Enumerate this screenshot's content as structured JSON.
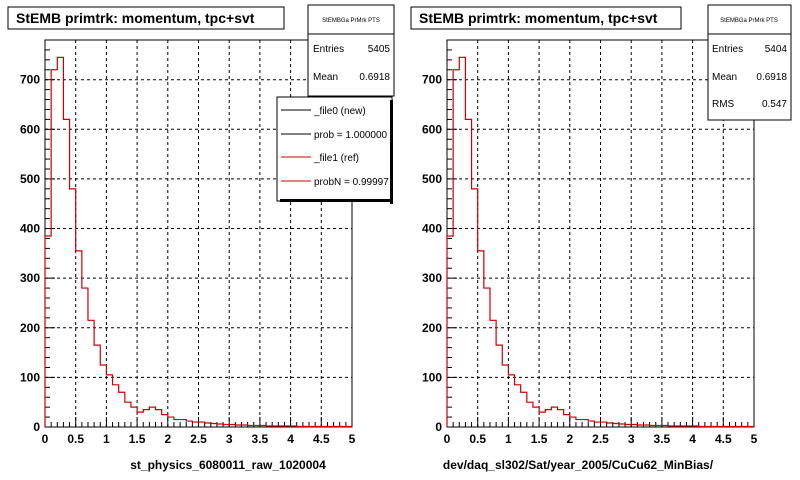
{
  "colors": {
    "file0": "#000000",
    "file1": "#cc0000",
    "grid": "#000000"
  },
  "panels": [
    {
      "title": "StEMB primtrk: momentum, tpc+svt",
      "xlabel": "st_physics_6080011_raw_1020004",
      "stats": {
        "name": "StEMBGa PrMrk PTS",
        "rows": [
          {
            "label": "Entries",
            "value": "5405"
          },
          {
            "label": "Mean",
            "value": "0.6918"
          }
        ]
      },
      "legend": [
        {
          "label": "_file0 (new)",
          "color": "file0"
        },
        {
          "label": "prob = 1.000000",
          "color": "file0"
        },
        {
          "label": "_file1 (ref)",
          "color": "file1"
        },
        {
          "label": "probN = 0.99997",
          "color": "file1"
        }
      ]
    },
    {
      "title": "StEMB primtrk: momentum, tpc+svt",
      "xlabel": "dev/daq_sl302/Sat/year_2005/CuCu62_MinBias/",
      "stats": {
        "name": "StEMBGa PrMrk PTS",
        "rows": [
          {
            "label": "Entries",
            "value": "5404"
          },
          {
            "label": "Mean",
            "value": "0.6918"
          },
          {
            "label": "RMS",
            "value": "0.547"
          }
        ]
      },
      "legend": []
    }
  ],
  "chart_data": [
    {
      "type": "bar",
      "title": "StEMB primtrk: momentum, tpc+svt",
      "xlabel": "st_physics_6080011_raw_1020004",
      "xlim": [
        0,
        5
      ],
      "ylim": [
        0,
        780
      ],
      "grid": true,
      "legend_position": "top-right",
      "x_ticks": [
        "0",
        "0.5",
        "1",
        "1.5",
        "2",
        "2.5",
        "3",
        "3.5",
        "4",
        "4.5",
        "5"
      ],
      "y_ticks": [
        "0",
        "100",
        "200",
        "300",
        "400",
        "500",
        "600",
        "700"
      ],
      "bin_width": 0.1,
      "series": [
        {
          "name": "_file1 (ref)",
          "values": [
            385,
            720,
            745,
            620,
            480,
            355,
            280,
            215,
            165,
            125,
            105,
            85,
            70,
            50,
            40,
            30,
            35,
            40,
            35,
            25,
            20,
            15,
            15,
            12,
            10,
            10,
            8,
            7,
            6,
            5,
            5,
            4,
            4,
            3,
            3,
            3,
            2,
            2,
            2,
            2,
            2,
            1,
            1,
            1,
            1,
            1,
            1,
            1,
            1,
            1
          ]
        }
      ]
    },
    {
      "type": "bar",
      "title": "StEMB primtrk: momentum, tpc+svt",
      "xlabel": "dev/daq_sl302/Sat/year_2005/CuCu62_MinBias/",
      "xlim": [
        0,
        5
      ],
      "ylim": [
        0,
        780
      ],
      "grid": true,
      "x_ticks": [
        "0",
        "0.5",
        "1",
        "1.5",
        "2",
        "2.5",
        "3",
        "3.5",
        "4",
        "4.5",
        "5"
      ],
      "y_ticks": [
        "0",
        "100",
        "200",
        "300",
        "400",
        "500",
        "600",
        "700"
      ],
      "bin_width": 0.1,
      "series": [
        {
          "name": "",
          "values": [
            385,
            720,
            745,
            620,
            480,
            355,
            280,
            215,
            165,
            125,
            105,
            85,
            70,
            50,
            40,
            30,
            35,
            40,
            35,
            25,
            20,
            15,
            15,
            12,
            10,
            10,
            8,
            7,
            6,
            5,
            5,
            4,
            4,
            3,
            3,
            3,
            2,
            2,
            2,
            2,
            2,
            1,
            1,
            1,
            1,
            1,
            1,
            1,
            1,
            1
          ]
        }
      ]
    }
  ]
}
